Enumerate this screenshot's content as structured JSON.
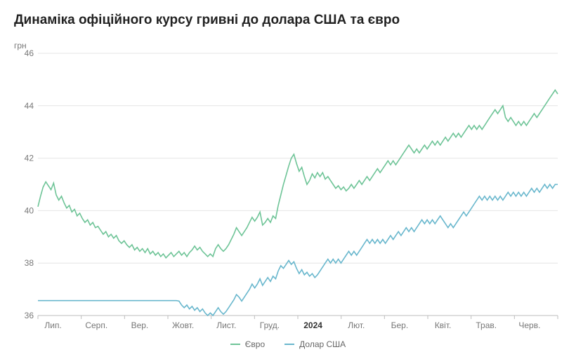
{
  "chart": {
    "title": "Динаміка офіційного курсу гривні до долара США та євро",
    "y_axis_label": "грн",
    "background_color": "#ffffff",
    "grid_color": "#e4e4e4",
    "axis_color": "#bdbdbd",
    "text_color": "#777777",
    "title_fontsize": 19,
    "label_fontsize": 12,
    "ylim": [
      36,
      46
    ],
    "ytick_step": 2,
    "yticks": [
      36,
      38,
      40,
      42,
      44,
      46
    ],
    "x_categories": [
      "Лип.",
      "Серп.",
      "Вер.",
      "Жовт.",
      "Лист.",
      "Груд.",
      "2024",
      "Лют.",
      "Бер.",
      "Квіт.",
      "Трав.",
      "Черв."
    ],
    "x_bold_index": 6,
    "line_width": 1.6,
    "series": [
      {
        "name": "Євро",
        "color": "#6ec497",
        "data": [
          40.15,
          40.55,
          40.9,
          41.1,
          40.95,
          40.8,
          41.05,
          40.6,
          40.4,
          40.55,
          40.3,
          40.1,
          40.2,
          39.95,
          40.05,
          39.8,
          39.9,
          39.7,
          39.55,
          39.65,
          39.45,
          39.55,
          39.35,
          39.4,
          39.25,
          39.1,
          39.2,
          39.0,
          39.1,
          38.95,
          39.05,
          38.85,
          38.75,
          38.85,
          38.7,
          38.6,
          38.7,
          38.5,
          38.6,
          38.45,
          38.55,
          38.4,
          38.55,
          38.35,
          38.45,
          38.3,
          38.4,
          38.25,
          38.35,
          38.2,
          38.3,
          38.4,
          38.25,
          38.35,
          38.45,
          38.3,
          38.4,
          38.25,
          38.4,
          38.5,
          38.65,
          38.5,
          38.6,
          38.45,
          38.35,
          38.25,
          38.35,
          38.25,
          38.55,
          38.7,
          38.55,
          38.45,
          38.55,
          38.7,
          38.9,
          39.1,
          39.35,
          39.2,
          39.05,
          39.2,
          39.35,
          39.55,
          39.75,
          39.6,
          39.75,
          39.95,
          39.45,
          39.55,
          39.7,
          39.55,
          39.8,
          39.7,
          40.2,
          40.6,
          41.0,
          41.35,
          41.7,
          42.0,
          42.15,
          41.8,
          41.5,
          41.65,
          41.3,
          41.0,
          41.15,
          41.4,
          41.25,
          41.45,
          41.3,
          41.45,
          41.2,
          41.3,
          41.15,
          41.0,
          40.85,
          40.95,
          40.8,
          40.9,
          40.75,
          40.85,
          41.0,
          40.85,
          41.0,
          41.15,
          41.0,
          41.15,
          41.3,
          41.15,
          41.3,
          41.45,
          41.6,
          41.45,
          41.6,
          41.75,
          41.9,
          41.75,
          41.9,
          41.75,
          41.9,
          42.05,
          42.2,
          42.35,
          42.5,
          42.35,
          42.2,
          42.35,
          42.2,
          42.35,
          42.5,
          42.35,
          42.5,
          42.65,
          42.5,
          42.65,
          42.5,
          42.65,
          42.8,
          42.65,
          42.8,
          42.95,
          42.8,
          42.95,
          42.8,
          42.95,
          43.1,
          43.25,
          43.1,
          43.25,
          43.1,
          43.25,
          43.1,
          43.25,
          43.4,
          43.55,
          43.7,
          43.85,
          43.7,
          43.85,
          44.0,
          43.55,
          43.4,
          43.55,
          43.4,
          43.25,
          43.4,
          43.25,
          43.4,
          43.25,
          43.4,
          43.55,
          43.7,
          43.55,
          43.7,
          43.85,
          44.0,
          44.15,
          44.3,
          44.45,
          44.6,
          44.45
        ]
      },
      {
        "name": "Долар США",
        "color": "#69b7cd",
        "data": [
          36.57,
          36.57,
          36.57,
          36.57,
          36.57,
          36.57,
          36.57,
          36.57,
          36.57,
          36.57,
          36.57,
          36.57,
          36.57,
          36.57,
          36.57,
          36.57,
          36.57,
          36.57,
          36.57,
          36.57,
          36.57,
          36.57,
          36.57,
          36.57,
          36.57,
          36.57,
          36.57,
          36.57,
          36.57,
          36.57,
          36.57,
          36.57,
          36.57,
          36.57,
          36.57,
          36.57,
          36.57,
          36.57,
          36.57,
          36.57,
          36.57,
          36.57,
          36.57,
          36.57,
          36.57,
          36.57,
          36.57,
          36.57,
          36.57,
          36.57,
          36.57,
          36.57,
          36.57,
          36.57,
          36.55,
          36.4,
          36.3,
          36.4,
          36.25,
          36.35,
          36.2,
          36.3,
          36.15,
          36.25,
          36.1,
          36.0,
          36.1,
          36.0,
          36.15,
          36.3,
          36.15,
          36.05,
          36.15,
          36.3,
          36.45,
          36.6,
          36.8,
          36.7,
          36.55,
          36.7,
          36.85,
          37.0,
          37.2,
          37.05,
          37.2,
          37.4,
          37.15,
          37.3,
          37.45,
          37.3,
          37.5,
          37.4,
          37.7,
          37.9,
          37.8,
          37.95,
          38.1,
          37.95,
          38.05,
          37.8,
          37.6,
          37.75,
          37.55,
          37.65,
          37.5,
          37.6,
          37.45,
          37.55,
          37.7,
          37.85,
          38.0,
          38.15,
          38.0,
          38.15,
          38.0,
          38.15,
          38.0,
          38.15,
          38.3,
          38.45,
          38.3,
          38.45,
          38.3,
          38.45,
          38.6,
          38.75,
          38.9,
          38.75,
          38.9,
          38.75,
          38.9,
          38.75,
          38.9,
          38.75,
          38.9,
          39.05,
          38.9,
          39.05,
          39.2,
          39.05,
          39.2,
          39.35,
          39.2,
          39.35,
          39.2,
          39.35,
          39.5,
          39.65,
          39.5,
          39.65,
          39.5,
          39.65,
          39.5,
          39.65,
          39.8,
          39.65,
          39.5,
          39.35,
          39.5,
          39.35,
          39.5,
          39.65,
          39.8,
          39.95,
          39.8,
          39.95,
          40.1,
          40.25,
          40.4,
          40.55,
          40.4,
          40.55,
          40.4,
          40.55,
          40.4,
          40.55,
          40.4,
          40.55,
          40.4,
          40.55,
          40.7,
          40.55,
          40.7,
          40.55,
          40.7,
          40.55,
          40.7,
          40.55,
          40.7,
          40.85,
          40.7,
          40.85,
          40.7,
          40.85,
          41.0,
          40.85,
          41.0,
          40.85,
          41.0,
          41.0
        ]
      }
    ]
  },
  "legend": {
    "items": [
      {
        "label": "Євро",
        "color": "#6ec497"
      },
      {
        "label": "Долар США",
        "color": "#69b7cd"
      }
    ]
  }
}
